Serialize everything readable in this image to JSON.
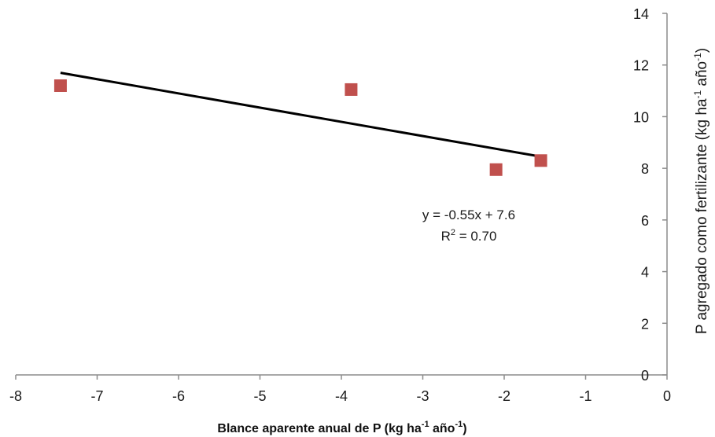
{
  "chart_data": {
    "type": "scatter",
    "title": "",
    "xlabel_text": "Blance aparente anual de P (kg ha",
    "xlabel_sup1": "-1",
    "xlabel_mid": " año",
    "xlabel_sup2": "-1",
    "xlabel_end": ")",
    "ylabel_text": "P agregado como fertilizante (kg ha",
    "ylabel_sup1": "-1",
    "ylabel_mid": " año",
    "ylabel_sup2": "-1",
    "ylabel_end": ")",
    "xlim": [
      -8,
      0
    ],
    "ylim": [
      0,
      14
    ],
    "xticks": [
      -8,
      -7,
      -6,
      -5,
      -4,
      -3,
      -2,
      -1,
      0
    ],
    "yticks": [
      0,
      2,
      4,
      6,
      8,
      10,
      12,
      14
    ],
    "y_axis_side": "right",
    "grid": false,
    "series": [
      {
        "marker": "square",
        "color": "#c0504d",
        "points": [
          {
            "x": -7.45,
            "y": 11.2
          },
          {
            "x": -3.88,
            "y": 11.05
          },
          {
            "x": -2.1,
            "y": 7.95
          },
          {
            "x": -1.55,
            "y": 8.3
          }
        ]
      }
    ],
    "trendline": {
      "slope": -0.55,
      "intercept": 7.6,
      "x_range": [
        -7.45,
        -1.55
      ],
      "color": "#000000"
    },
    "annotation": {
      "equation": "y = -0.55x + 7.6",
      "r2_prefix": "R",
      "r2_sup": "2",
      "r2_suffix": " = 0.70"
    }
  }
}
